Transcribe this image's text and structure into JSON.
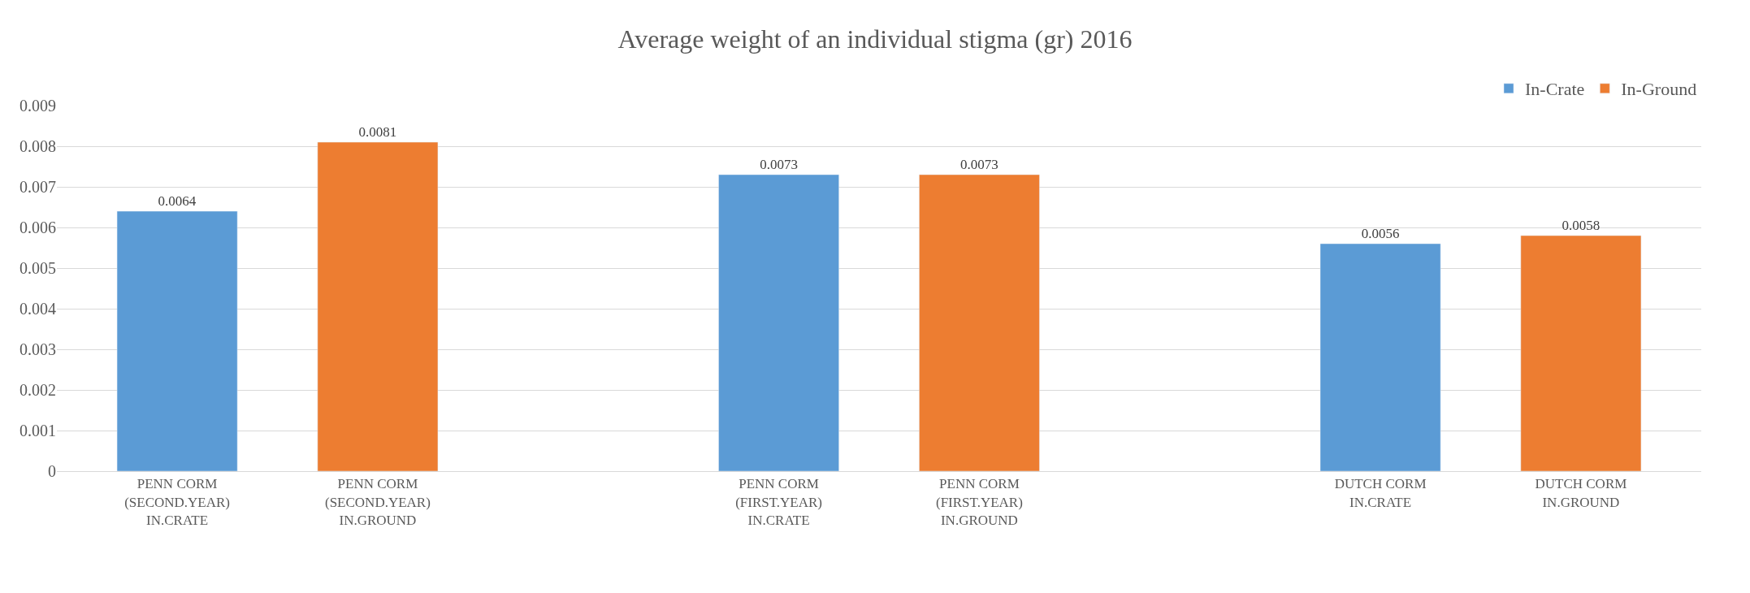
{
  "chart_data": {
    "type": "bar",
    "title": "Average weight of an individual stigma (gr) 2016",
    "categories": [
      "PENN CORM\n(SECOND.YEAR)\nIN.CRATE",
      "PENN CORM\n(SECOND.YEAR)\nIN.GROUND",
      null,
      "PENN CORM\n(FIRST.YEAR)\nIN.CRATE",
      "PENN CORM\n(FIRST.YEAR)\nIN.GROUND",
      null,
      "DUTCH CORM\nIN.CRATE",
      "DUTCH CORM\nIN.GROUND"
    ],
    "series": [
      {
        "name": "In-Crate",
        "color": "#5b9bd5",
        "values": [
          0.0064,
          null,
          null,
          0.0073,
          null,
          null,
          0.0056,
          null
        ]
      },
      {
        "name": "In-Ground",
        "color": "#ed7d31",
        "values": [
          null,
          0.0081,
          null,
          null,
          0.0073,
          null,
          null,
          0.0058
        ]
      }
    ],
    "ylim": [
      0,
      0.009
    ],
    "yticks": [
      0,
      0.001,
      0.002,
      0.003,
      0.004,
      0.005,
      0.006,
      0.007,
      0.008,
      0.009
    ],
    "grid": "y",
    "legend": "top right",
    "data_labels": true
  }
}
